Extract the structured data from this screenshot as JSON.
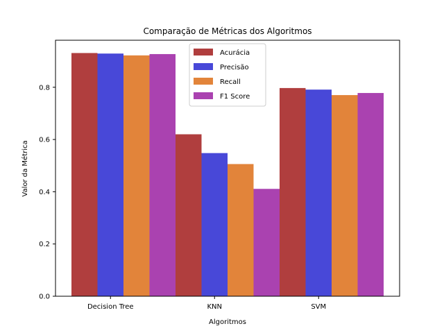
{
  "chart_data": {
    "type": "bar",
    "title": "Comparação de Métricas dos Algoritmos",
    "xlabel": "Algoritmos",
    "ylabel": "Valor da Métrica",
    "categories": [
      "Decision Tree",
      "KNN",
      "SVM"
    ],
    "ylim": [
      0,
      0.98
    ],
    "yticks": [
      "0.0",
      "0.2",
      "0.4",
      "0.6",
      "0.8"
    ],
    "grid": false,
    "legend_position": "top-center",
    "series": [
      {
        "name": "Acurácia",
        "color": "#b03e3e",
        "values": [
          0.931,
          0.62,
          0.797
        ]
      },
      {
        "name": "Precisão",
        "color": "#4848d8",
        "values": [
          0.929,
          0.548,
          0.791
        ]
      },
      {
        "name": "Recall",
        "color": "#e2843a",
        "values": [
          0.922,
          0.506,
          0.77
        ]
      },
      {
        "name": "F1 Score",
        "color": "#aa42b0",
        "values": [
          0.927,
          0.411,
          0.778
        ]
      }
    ]
  }
}
